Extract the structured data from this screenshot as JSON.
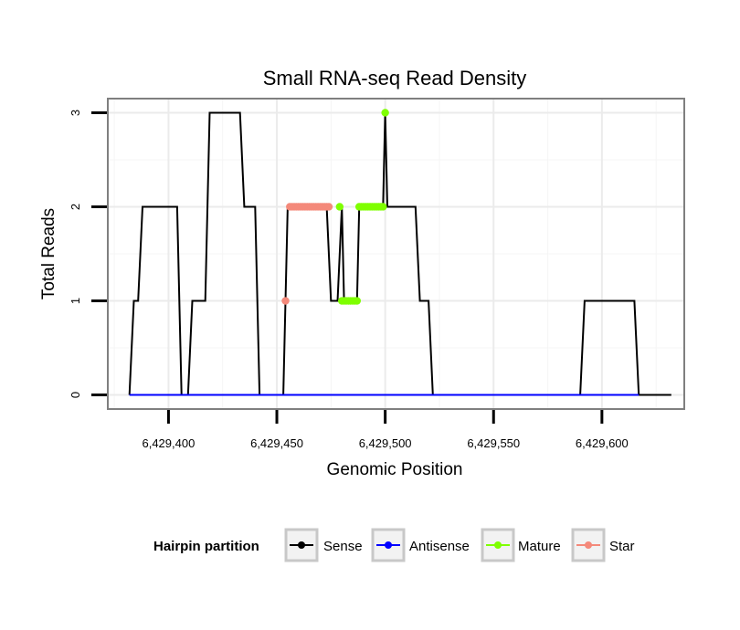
{
  "chart_data": {
    "type": "line",
    "title": "Small RNA-seq Read Density",
    "xlabel": "Genomic Position",
    "ylabel": "Total Reads",
    "xlim": [
      6429372,
      6429638
    ],
    "ylim": [
      -0.15,
      3.15
    ],
    "x_ticks": [
      6429400,
      6429450,
      6429500,
      6429550,
      6429600
    ],
    "x_tick_labels": [
      "6,429,400",
      "6,429,450",
      "6,429,500",
      "6,429,550",
      "6,429,600"
    ],
    "y_ticks": [
      0,
      1,
      2,
      3
    ],
    "y_tick_labels": [
      "0",
      "1",
      "2",
      "3"
    ],
    "grid": true,
    "series": [
      {
        "name": "Sense",
        "color": "#000000",
        "style": "line",
        "points": [
          [
            6429382,
            0
          ],
          [
            6429384,
            1
          ],
          [
            6429386,
            1
          ],
          [
            6429388,
            2
          ],
          [
            6429404,
            2
          ],
          [
            6429406,
            0
          ],
          [
            6429409,
            0
          ],
          [
            6429411,
            1
          ],
          [
            6429417,
            1
          ],
          [
            6429419,
            3
          ],
          [
            6429433,
            3
          ],
          [
            6429435,
            2
          ],
          [
            6429440,
            2
          ],
          [
            6429442,
            0
          ],
          [
            6429453,
            0
          ],
          [
            6429455,
            2
          ],
          [
            6429473,
            2
          ],
          [
            6429475,
            1
          ],
          [
            6429478,
            1
          ],
          [
            6429480,
            2
          ],
          [
            6429481,
            1
          ],
          [
            6429487,
            1
          ],
          [
            6429488,
            2
          ],
          [
            6429499,
            2
          ],
          [
            6429500,
            3
          ],
          [
            6429501,
            2
          ],
          [
            6429514,
            2
          ],
          [
            6429516,
            1
          ],
          [
            6429520,
            1
          ],
          [
            6429522,
            0
          ],
          [
            6429590,
            0
          ],
          [
            6429592,
            1
          ],
          [
            6429615,
            1
          ],
          [
            6429617,
            0
          ],
          [
            6429632,
            0
          ]
        ]
      },
      {
        "name": "Antisense",
        "color": "#0000ff",
        "style": "line",
        "points": [
          [
            6429382,
            0
          ],
          [
            6429617,
            0
          ]
        ]
      },
      {
        "name": "Mature",
        "color": "#7fff00",
        "style": "points",
        "points": [
          [
            6429479,
            2
          ],
          [
            6429480,
            1
          ],
          [
            6429481,
            1
          ],
          [
            6429482,
            1
          ],
          [
            6429483,
            1
          ],
          [
            6429484,
            1
          ],
          [
            6429485,
            1
          ],
          [
            6429486,
            1
          ],
          [
            6429487,
            1
          ],
          [
            6429488,
            2
          ],
          [
            6429489,
            2
          ],
          [
            6429490,
            2
          ],
          [
            6429491,
            2
          ],
          [
            6429492,
            2
          ],
          [
            6429493,
            2
          ],
          [
            6429494,
            2
          ],
          [
            6429495,
            2
          ],
          [
            6429496,
            2
          ],
          [
            6429497,
            2
          ],
          [
            6429498,
            2
          ],
          [
            6429499,
            2
          ],
          [
            6429500,
            3
          ]
        ]
      },
      {
        "name": "Star",
        "color": "#f4897a",
        "style": "points",
        "points": [
          [
            6429454,
            1
          ],
          [
            6429456,
            2
          ],
          [
            6429457,
            2
          ],
          [
            6429458,
            2
          ],
          [
            6429459,
            2
          ],
          [
            6429460,
            2
          ],
          [
            6429461,
            2
          ],
          [
            6429462,
            2
          ],
          [
            6429463,
            2
          ],
          [
            6429464,
            2
          ],
          [
            6429465,
            2
          ],
          [
            6429466,
            2
          ],
          [
            6429467,
            2
          ],
          [
            6429468,
            2
          ],
          [
            6429469,
            2
          ],
          [
            6429470,
            2
          ],
          [
            6429471,
            2
          ],
          [
            6429472,
            2
          ],
          [
            6429473,
            2
          ],
          [
            6429474,
            2
          ]
        ]
      }
    ],
    "legend": {
      "title": "Hairpin partition",
      "position": "bottom",
      "entries": [
        "Sense",
        "Antisense",
        "Mature",
        "Star"
      ]
    }
  }
}
